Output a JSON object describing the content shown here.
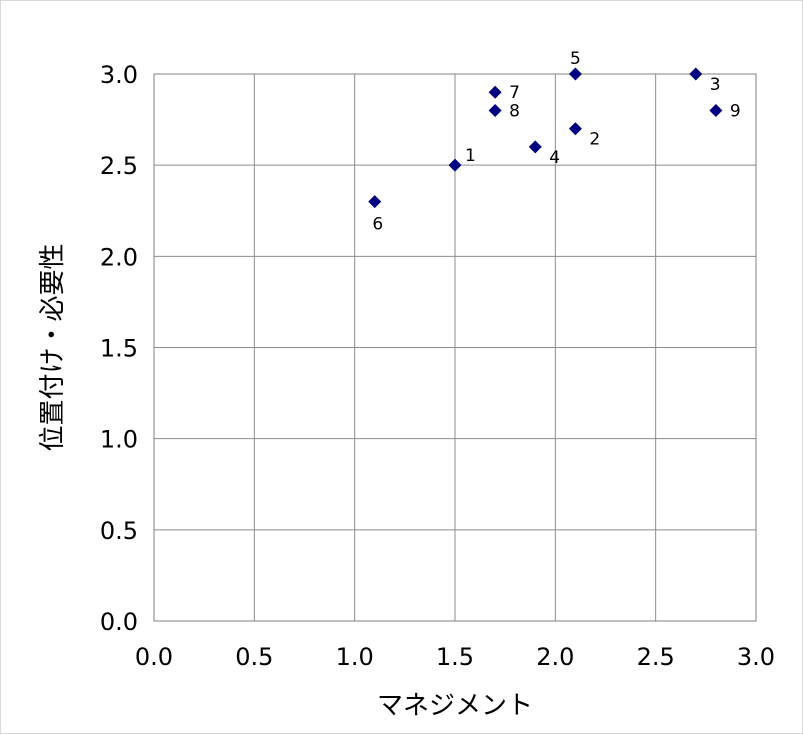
{
  "chart_data": {
    "type": "scatter",
    "title": "",
    "xlabel": "マネジメント",
    "ylabel": "位置付け・必要性",
    "xlim": [
      0.0,
      3.0
    ],
    "ylim": [
      0.0,
      3.0
    ],
    "x_ticks": [
      "0.0",
      "0.5",
      "1.0",
      "1.5",
      "2.0",
      "2.5",
      "3.0"
    ],
    "y_ticks": [
      "0.0",
      "0.5",
      "1.0",
      "1.5",
      "2.0",
      "2.5",
      "3.0"
    ],
    "grid": true,
    "legend": "none",
    "marker": "diamond",
    "marker_color": "#000080",
    "points": [
      {
        "label": "1",
        "x": 1.5,
        "y": 2.5,
        "label_pos": "upper-right"
      },
      {
        "label": "2",
        "x": 2.1,
        "y": 2.7,
        "label_pos": "lower-right"
      },
      {
        "label": "3",
        "x": 2.7,
        "y": 3.0,
        "label_pos": "lower-right"
      },
      {
        "label": "4",
        "x": 1.9,
        "y": 2.6,
        "label_pos": "lower-right"
      },
      {
        "label": "5",
        "x": 2.1,
        "y": 3.0,
        "label_pos": "above"
      },
      {
        "label": "6",
        "x": 1.1,
        "y": 2.3,
        "label_pos": "below"
      },
      {
        "label": "7",
        "x": 1.7,
        "y": 2.9,
        "label_pos": "right"
      },
      {
        "label": "8",
        "x": 1.7,
        "y": 2.8,
        "label_pos": "right"
      },
      {
        "label": "9",
        "x": 2.8,
        "y": 2.8,
        "label_pos": "right"
      }
    ]
  }
}
